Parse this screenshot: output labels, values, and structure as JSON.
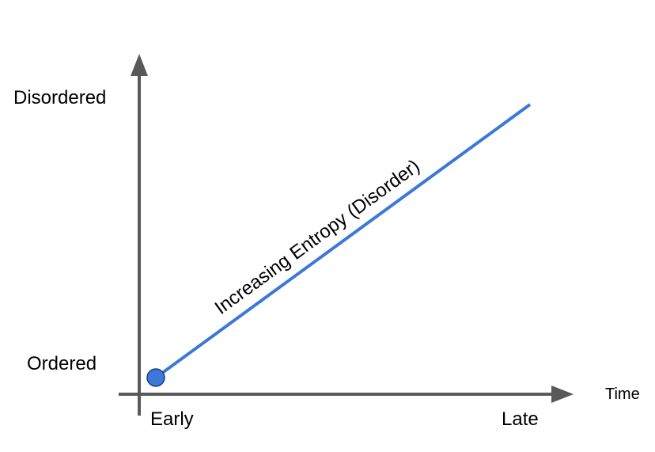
{
  "diagram": {
    "y_axis": {
      "top_label": "Disordered",
      "bottom_label": "Ordered"
    },
    "x_axis": {
      "title": "Time",
      "start_label": "Early",
      "end_label": "Late"
    },
    "trend_line": {
      "label": "Increasing Entropy (Disorder)",
      "color": "#3c78d8"
    },
    "start_point": {
      "color": "#3c78d8"
    },
    "axis_color": "#595959"
  }
}
